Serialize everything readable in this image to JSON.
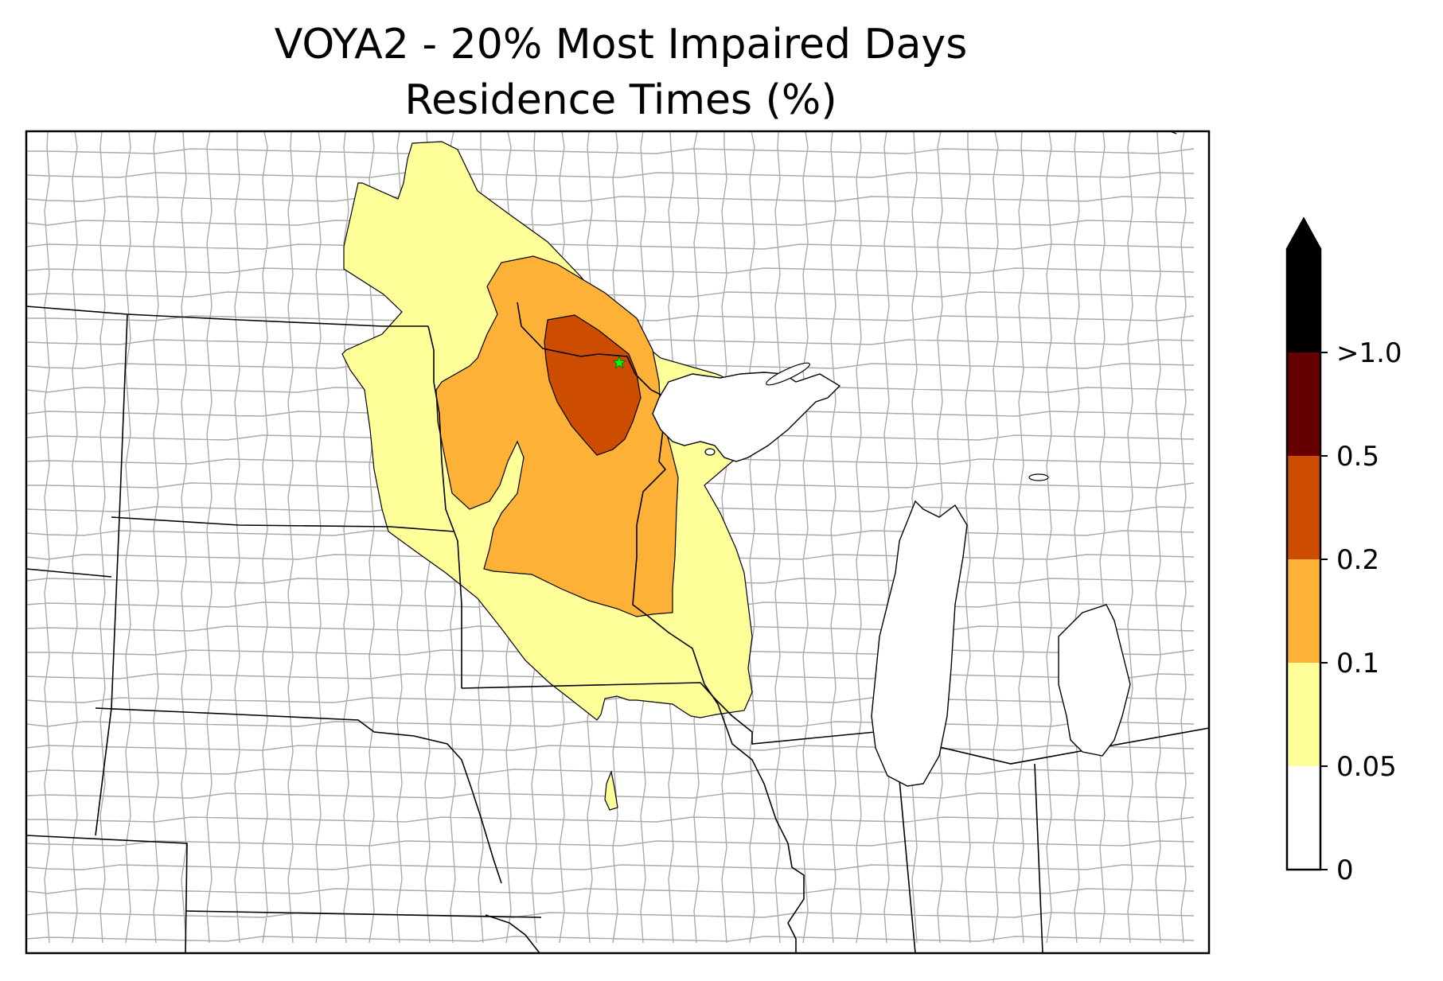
{
  "title": {
    "line1": "VOYA2 - 20% Most Impaired Days",
    "line2": "Residence Times (%)"
  },
  "map": {
    "region": "Upper Midwest United States",
    "site_marker": {
      "name": "VOYA2",
      "shape": "star",
      "color": "#00ff00"
    },
    "state_boundary_color": "#000000",
    "county_boundary_color": "#aaaaaa"
  },
  "colorbar": {
    "extend": "max",
    "bins": [
      {
        "label": "0",
        "color": "#ffffff"
      },
      {
        "label": "0.05",
        "color": "#ffff99"
      },
      {
        "label": "0.1",
        "color": "#fdb237"
      },
      {
        "label": "0.2",
        "color": "#cc4c02"
      },
      {
        "label": "0.5",
        "color": "#660000"
      },
      {
        "label": ">1.0",
        "color": "#000000"
      }
    ],
    "tick_labels": [
      "0",
      "0.05",
      "0.1",
      "0.2",
      "0.5",
      ">1.0"
    ]
  }
}
